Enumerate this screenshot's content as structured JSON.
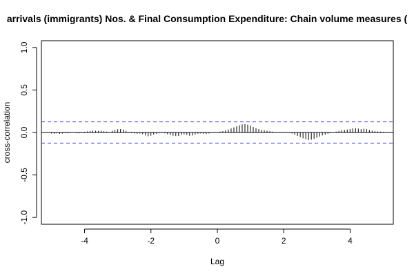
{
  "chart_data": {
    "type": "bar",
    "title": "arrivals (immigrants) Nos. & Final Consumption Expenditure: Chain volume measures (",
    "xlabel": "Lag",
    "ylabel": "cross-correlation",
    "xlim": [
      -5.3,
      5.3
    ],
    "ylim": [
      -1.08,
      1.08
    ],
    "x_ticks": [
      -4,
      -2,
      0,
      2,
      4
    ],
    "x_tick_labels": [
      "-4",
      "-2",
      "0",
      "2",
      "4"
    ],
    "y_ticks": [
      -1.0,
      -0.5,
      0.0,
      0.5,
      1.0
    ],
    "y_tick_labels": [
      "-1.0",
      "-0.5",
      "0.0",
      "0.5",
      "1.0"
    ],
    "confidence_bound": 0.125,
    "colors": {
      "ci": "#3b3bd6",
      "bars": "#000000",
      "axis": "#000000"
    },
    "lag_start": -5.0,
    "lag_step": 0.0833,
    "values": [
      -0.012,
      -0.015,
      -0.01,
      -0.016,
      -0.012,
      -0.008,
      -0.01,
      -0.005,
      -0.003,
      -0.008,
      -0.01,
      -0.006,
      0.008,
      0.012,
      0.018,
      0.022,
      0.02,
      0.018,
      0.02,
      0.015,
      0.01,
      0.005,
      0.02,
      0.03,
      0.038,
      0.04,
      0.035,
      0.02,
      0.005,
      -0.008,
      -0.012,
      -0.015,
      -0.012,
      -0.02,
      -0.035,
      -0.045,
      -0.038,
      -0.025,
      -0.015,
      -0.008,
      -0.005,
      -0.01,
      -0.02,
      -0.03,
      -0.038,
      -0.042,
      -0.04,
      -0.03,
      -0.022,
      -0.03,
      -0.038,
      -0.035,
      -0.025,
      -0.015,
      -0.012,
      -0.015,
      -0.018,
      -0.012,
      -0.005,
      0.0,
      0.005,
      0.01,
      0.015,
      0.025,
      0.035,
      0.048,
      0.06,
      0.072,
      0.085,
      0.095,
      0.098,
      0.092,
      0.082,
      0.065,
      0.05,
      0.04,
      0.03,
      0.025,
      0.02,
      0.015,
      0.01,
      0.005,
      0.003,
      0.005,
      0.005,
      0.003,
      -0.005,
      -0.012,
      -0.025,
      -0.04,
      -0.055,
      -0.068,
      -0.08,
      -0.088,
      -0.085,
      -0.075,
      -0.062,
      -0.048,
      -0.035,
      -0.025,
      -0.015,
      -0.008,
      0.002,
      0.01,
      0.018,
      0.025,
      0.03,
      0.035,
      0.04,
      0.048,
      0.05,
      0.045,
      0.04,
      0.045,
      0.042,
      0.03,
      0.02,
      0.015,
      0.012,
      0.01,
      0.008
    ]
  }
}
